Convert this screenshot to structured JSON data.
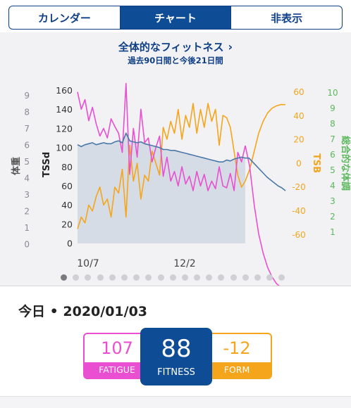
{
  "tabs": [
    {
      "label": "カレンダー",
      "active": false
    },
    {
      "label": "チャート",
      "active": true
    },
    {
      "label": "非表示",
      "active": false
    }
  ],
  "header": {
    "title": "全体的なフィットネス",
    "subtitle": "過去90日間と今後21日間"
  },
  "colors": {
    "brand": "#0f4c96",
    "fatigue": "#e94fd0",
    "form": "#f5a51b",
    "wellness": "#5cb85c",
    "fitness_line": "#4a78a8"
  },
  "chart_data": {
    "type": "line",
    "x_ticks": [
      "10/7",
      "12/2"
    ],
    "axes": {
      "weight": {
        "label": "体重",
        "ticks": [
          "9",
          "8",
          "7",
          "6",
          "5",
          "4",
          "3",
          "2",
          "1",
          "0"
        ],
        "range": [
          0,
          9
        ]
      },
      "tss": {
        "label": "TSSd",
        "ticks": [
          "160",
          "140",
          "120",
          "100",
          "80",
          "60",
          "40",
          "20",
          "0"
        ],
        "range": [
          0,
          160
        ]
      },
      "tsb": {
        "label": "TSB",
        "ticks": [
          "60",
          "40",
          "20",
          "0",
          "-20",
          "-40",
          "-60"
        ],
        "range": [
          -60,
          60
        ]
      },
      "wellness": {
        "label": "総合的な体調",
        "ticks": [
          "10",
          "9",
          "8",
          "7",
          "6",
          "5",
          "4",
          "3",
          "2",
          "1"
        ],
        "range": [
          1,
          10
        ]
      }
    },
    "series": [
      {
        "axis": "tss",
        "values": [
          103,
          101,
          103,
          104,
          105,
          103,
          104,
          105,
          104,
          104,
          106,
          107,
          105,
          115,
          107,
          106,
          105,
          106,
          104,
          103,
          102,
          101,
          100,
          98,
          98,
          97,
          97,
          96,
          95,
          94,
          93,
          92,
          91,
          90,
          89,
          88,
          87,
          86,
          85,
          85,
          87,
          86,
          88,
          89,
          90,
          89
        ],
        "forecast": [
          89,
          85,
          81,
          77,
          73,
          69,
          66,
          63,
          60,
          58,
          55
        ]
      },
      {
        "axis": "tss",
        "values": [
          158,
          140,
          150,
          128,
          142,
          125,
          112,
          120,
          110,
          130,
          122,
          115,
          95,
          167,
          72,
          120,
          90,
          140,
          105,
          110,
          85,
          100,
          112,
          70,
          90,
          65,
          75,
          60,
          80,
          62,
          70,
          55,
          75,
          60,
          72,
          55,
          65,
          57,
          80,
          60,
          58,
          73,
          55,
          95,
          85,
          102
        ],
        "forecast": [
          80,
          40,
          10,
          -10,
          -25,
          -35,
          -42,
          -46,
          -48
        ]
      },
      {
        "axis": "tsb",
        "values": [
          -55,
          -45,
          -50,
          -35,
          -40,
          -28,
          -20,
          -35,
          -30,
          -45,
          -20,
          -25,
          -5,
          -45,
          15,
          -15,
          0,
          -30,
          -10,
          -15,
          10,
          0,
          -10,
          30,
          20,
          35,
          25,
          45,
          20,
          40,
          30,
          50,
          25,
          45,
          30,
          50,
          35,
          45,
          15,
          40,
          38,
          30,
          10,
          -10,
          -20,
          -15
        ],
        "forecast": [
          -5,
          10,
          25,
          35,
          42,
          46,
          48,
          49,
          49
        ]
      }
    ]
  },
  "today": {
    "label": "今日 • 2020/01/03"
  },
  "metrics": {
    "fatigue": {
      "value": "107",
      "label": "FATIGUE"
    },
    "fitness": {
      "value": "88",
      "label": "FITNESS"
    },
    "form": {
      "value": "-12",
      "label": "FORM"
    }
  }
}
